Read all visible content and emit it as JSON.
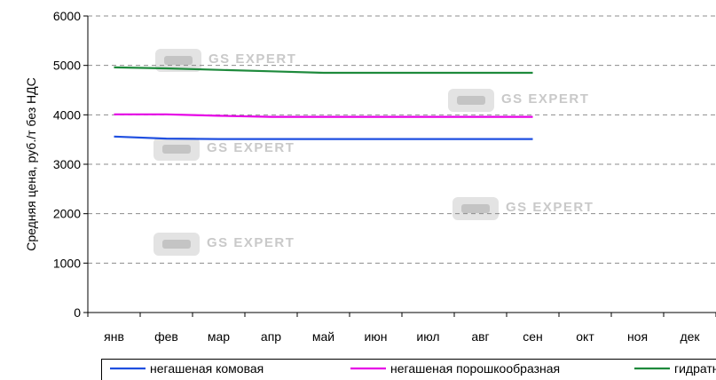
{
  "chart_data": {
    "type": "line",
    "ylabel": "Средняя цена, руб./т без НДС",
    "xlabel": "",
    "ylim": [
      0,
      6000
    ],
    "yticks": [
      0,
      1000,
      2000,
      3000,
      4000,
      5000,
      6000
    ],
    "categories": [
      "янв",
      "фев",
      "мар",
      "апр",
      "май",
      "июн",
      "июл",
      "авг",
      "сен",
      "окт",
      "ноя",
      "дек"
    ],
    "series": [
      {
        "name": "негашеная комовая",
        "color": "#1f4fe0",
        "values": [
          3560,
          3520,
          3510,
          3510,
          3510,
          3510,
          3510,
          3510,
          3510,
          null,
          null,
          null
        ]
      },
      {
        "name": "негашеная порошкообразная",
        "color": "#e600e6",
        "values": [
          4010,
          4010,
          3980,
          3960,
          3960,
          3960,
          3960,
          3960,
          3960,
          null,
          null,
          null
        ]
      },
      {
        "name": "гидратная",
        "color": "#1e8a3c",
        "values": [
          4960,
          4940,
          4910,
          4880,
          4850,
          4850,
          4850,
          4850,
          4850,
          null,
          null,
          null
        ]
      }
    ],
    "grid": "horizontal dashed",
    "legend": "bottom"
  },
  "watermark": {
    "text": "GS EXPERT"
  }
}
